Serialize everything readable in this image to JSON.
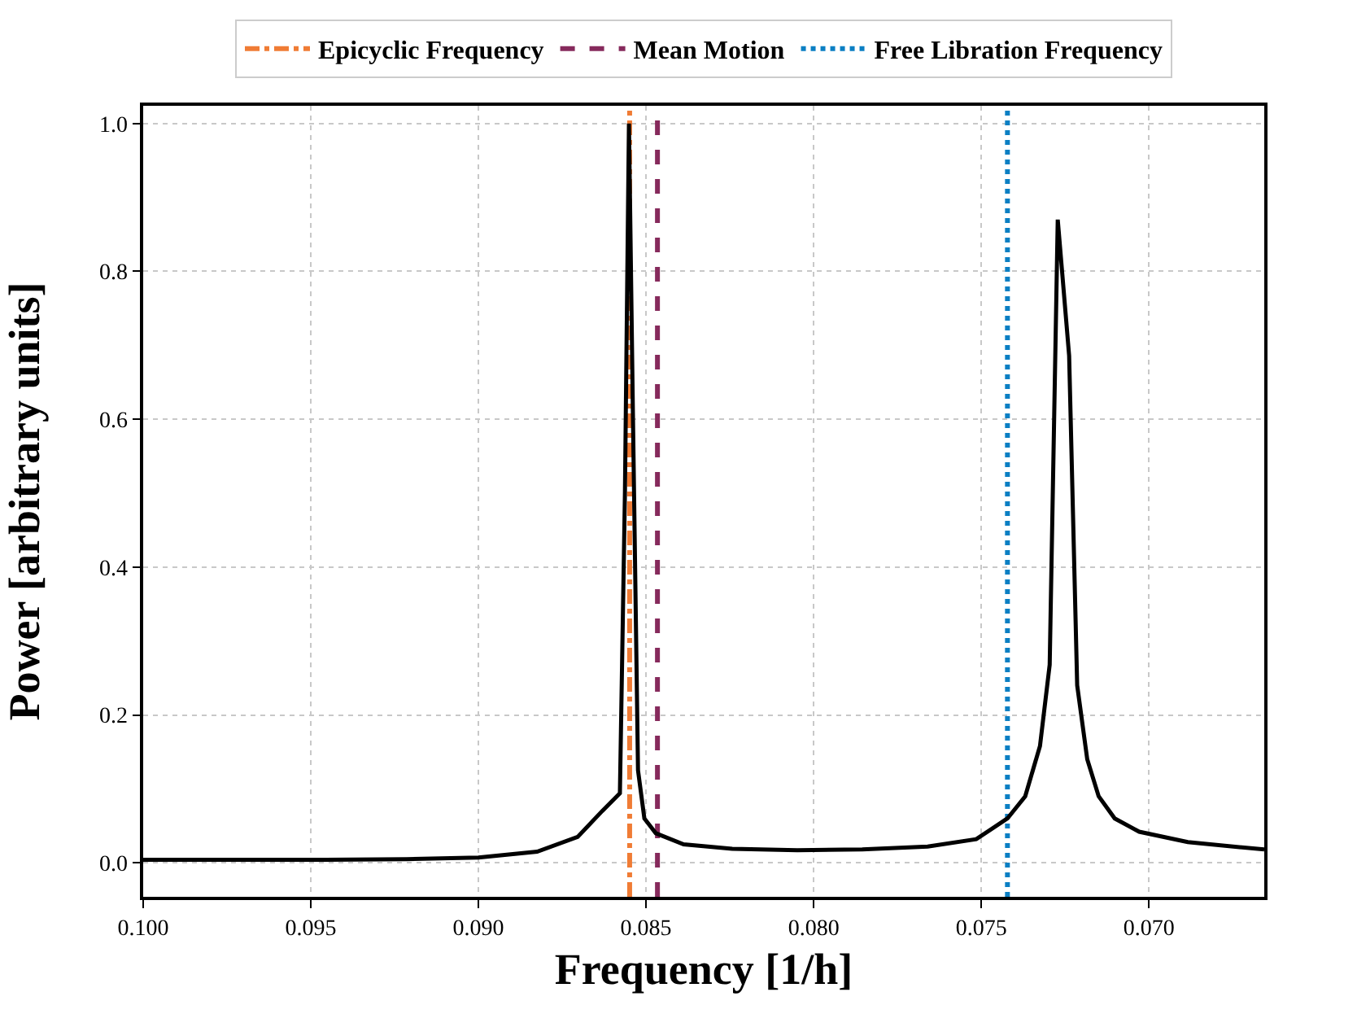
{
  "chart_data": {
    "type": "line",
    "xlabel": "Frequency [1/h]",
    "ylabel": "Power [arbitrary units]",
    "x": [
      0.1,
      0.09699,
      0.09456,
      0.09214,
      0.09,
      0.08825,
      0.08704,
      0.08631,
      0.08578,
      0.08563,
      0.08551,
      0.08539,
      0.08524,
      0.08505,
      0.08471,
      0.08388,
      0.08243,
      0.08049,
      0.07855,
      0.0766,
      0.07515,
      0.07422,
      0.07369,
      0.07325,
      0.07296,
      0.07272,
      0.07238,
      0.07214,
      0.07184,
      0.0715,
      0.07102,
      0.07029,
      0.06884,
      0.06656
    ],
    "series": [
      {
        "color": "#000000",
        "values": [
          0.004,
          0.004,
          0.004,
          0.005,
          0.007,
          0.015,
          0.035,
          0.07,
          0.094,
          0.5,
          1.0,
          0.6,
          0.125,
          0.06,
          0.04,
          0.025,
          0.019,
          0.017,
          0.018,
          0.022,
          0.032,
          0.06,
          0.09,
          0.158,
          0.268,
          0.87,
          0.686,
          0.24,
          0.14,
          0.09,
          0.06,
          0.042,
          0.028,
          0.018
        ]
      }
    ],
    "ref_lines": [
      {
        "axis": "x",
        "value": 0.08549,
        "label": "Epicyclic Frequency",
        "color": "#f07c35",
        "line_style": "dashdot"
      },
      {
        "axis": "x",
        "value": 0.08466,
        "label": "Mean Motion",
        "color": "#862a5c",
        "line_style": "dashed"
      },
      {
        "axis": "x",
        "value": 0.07422,
        "label": "Free Libration Frequency",
        "color": "#0b7fc3",
        "line_style": "dotted"
      }
    ],
    "xlim": [
      0.1,
      0.06656
    ],
    "ylim": [
      -0.046,
      1.024
    ],
    "xticks": [
      {
        "value": 0.1,
        "label": "0.100"
      },
      {
        "value": 0.095,
        "label": "0.095"
      },
      {
        "value": 0.09,
        "label": "0.090"
      },
      {
        "value": 0.085,
        "label": "0.085"
      },
      {
        "value": 0.08,
        "label": "0.080"
      },
      {
        "value": 0.075,
        "label": "0.075"
      },
      {
        "value": 0.07,
        "label": "0.070"
      }
    ],
    "yticks": [
      {
        "value": 0,
        "label": "0.0"
      },
      {
        "value": 0.2,
        "label": "0.2"
      },
      {
        "value": 0.4,
        "label": "0.4"
      },
      {
        "value": 0.6,
        "label": "0.6"
      },
      {
        "value": 0.8,
        "label": "0.8"
      },
      {
        "value": 1,
        "label": "1.0"
      }
    ],
    "grid": true,
    "legend": "top",
    "marker": "none",
    "line_style": "solid"
  }
}
